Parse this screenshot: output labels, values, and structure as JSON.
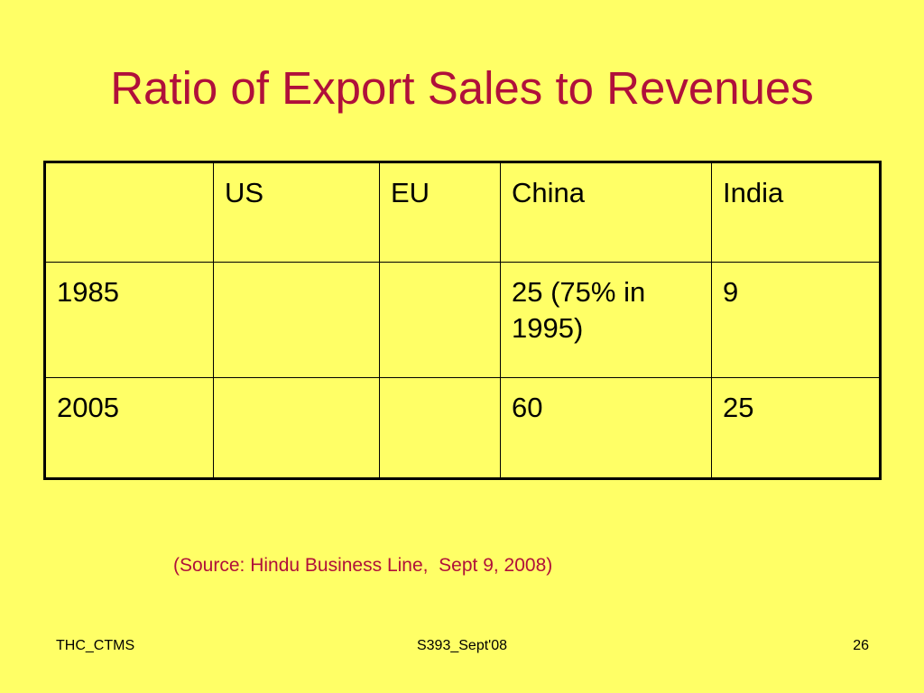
{
  "slide": {
    "title": "Ratio of Export Sales to Revenues",
    "source": "(Source: Hindu Business Line,  Sept 9, 2008)"
  },
  "table": {
    "headers": [
      "",
      "US",
      "EU",
      "China",
      "India"
    ],
    "rows": [
      [
        "1985",
        "",
        "",
        "25 (75% in 1995)",
        "9"
      ],
      [
        "2005",
        "",
        "",
        "60",
        "25"
      ]
    ]
  },
  "footer": {
    "left": "THC_CTMS",
    "center": "S393_Sept'08",
    "page_number": "26"
  },
  "colors": {
    "background": "#ffff66",
    "title": "#b0103a",
    "text": "#000000"
  }
}
